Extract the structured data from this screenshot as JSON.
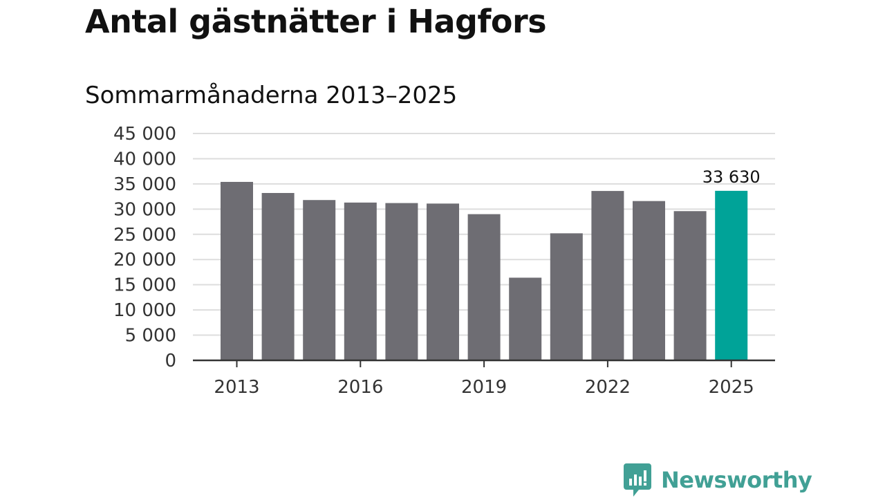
{
  "title": "Antal gästnätter i Hagfors",
  "subtitle": "Sommarmånaderna 2013–2025",
  "brand": {
    "name": "Newsworthy",
    "color": "#41a095"
  },
  "colors": {
    "bar": "#6e6d73",
    "highlight": "#00a398",
    "grid": "#dddddd",
    "axis": "#333333"
  },
  "chart_data": {
    "type": "bar",
    "x": [
      2013,
      2014,
      2015,
      2016,
      2017,
      2018,
      2019,
      2020,
      2021,
      2022,
      2023,
      2024,
      2025
    ],
    "values": [
      35400,
      33200,
      31800,
      31300,
      31200,
      31100,
      29000,
      16400,
      25200,
      33600,
      31600,
      29600,
      33630
    ],
    "x_tick_labels": [
      "2013",
      "2016",
      "2019",
      "2022",
      "2025"
    ],
    "x_tick_values": [
      2013,
      2016,
      2019,
      2022,
      2025
    ],
    "y_ticks": [
      0,
      5000,
      10000,
      15000,
      20000,
      25000,
      30000,
      35000,
      40000,
      45000
    ],
    "y_tick_labels": [
      "0",
      "5 000",
      "10 000",
      "15 000",
      "20 000",
      "25 000",
      "30 000",
      "35 000",
      "40 000",
      "45 000"
    ],
    "ylim": [
      0,
      45000
    ],
    "highlight_index": 12,
    "annotation": {
      "index": 12,
      "label": "33 630"
    },
    "grid": true,
    "legend": "none"
  }
}
